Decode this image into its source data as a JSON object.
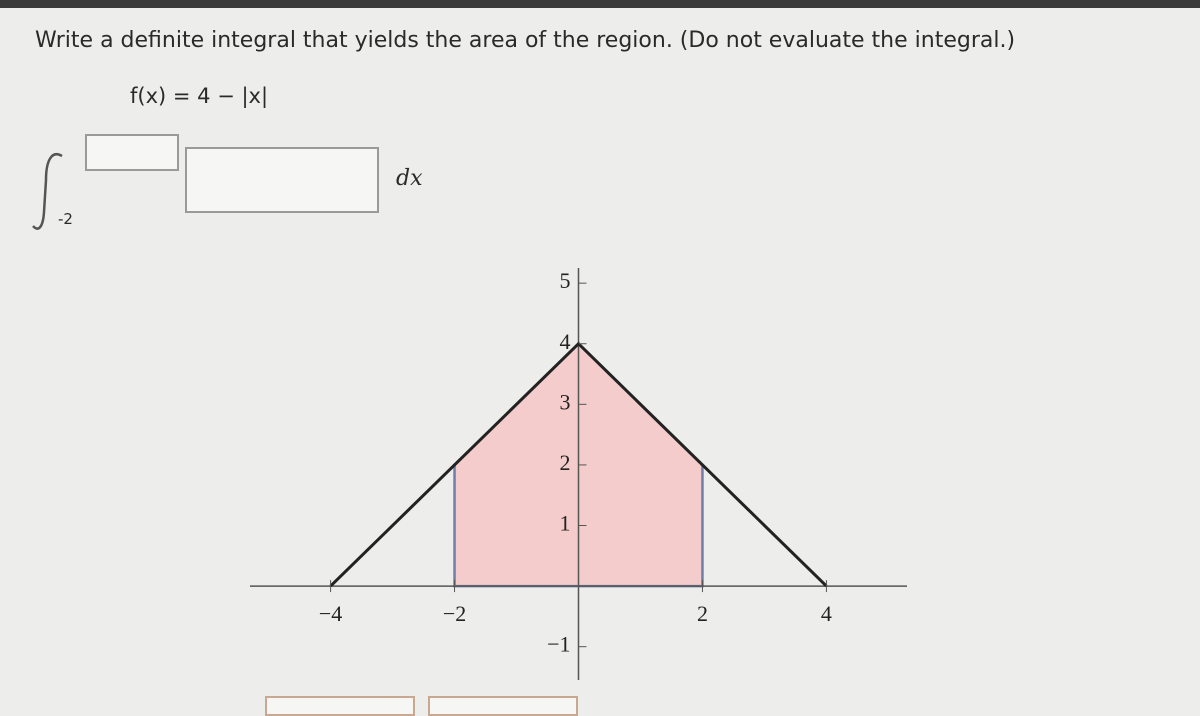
{
  "question": "Write a definite integral that yields the area of the region. (Do not evaluate the integral.)",
  "function": "f(x) = 4 − |x|",
  "integral": {
    "lower_limit": "-2",
    "differential": "dx"
  },
  "graph": {
    "xlim": [
      -5.3,
      5.3
    ],
    "ylim": [
      -1.55,
      5.25
    ],
    "xticks": [
      {
        "value": -4,
        "label": "−4"
      },
      {
        "value": -2,
        "label": "−2"
      },
      2,
      4
    ],
    "yticks": [
      {
        "value": -1,
        "label": "−1"
      },
      1,
      2,
      3,
      4,
      5
    ],
    "curve": {
      "x": [
        -4,
        0,
        4
      ],
      "y": [
        0,
        4,
        0
      ]
    },
    "shade": {
      "x": [
        -2,
        -2,
        0,
        2,
        2
      ],
      "y": [
        0,
        2,
        4,
        2,
        0
      ],
      "color": "#f4cccc"
    }
  }
}
